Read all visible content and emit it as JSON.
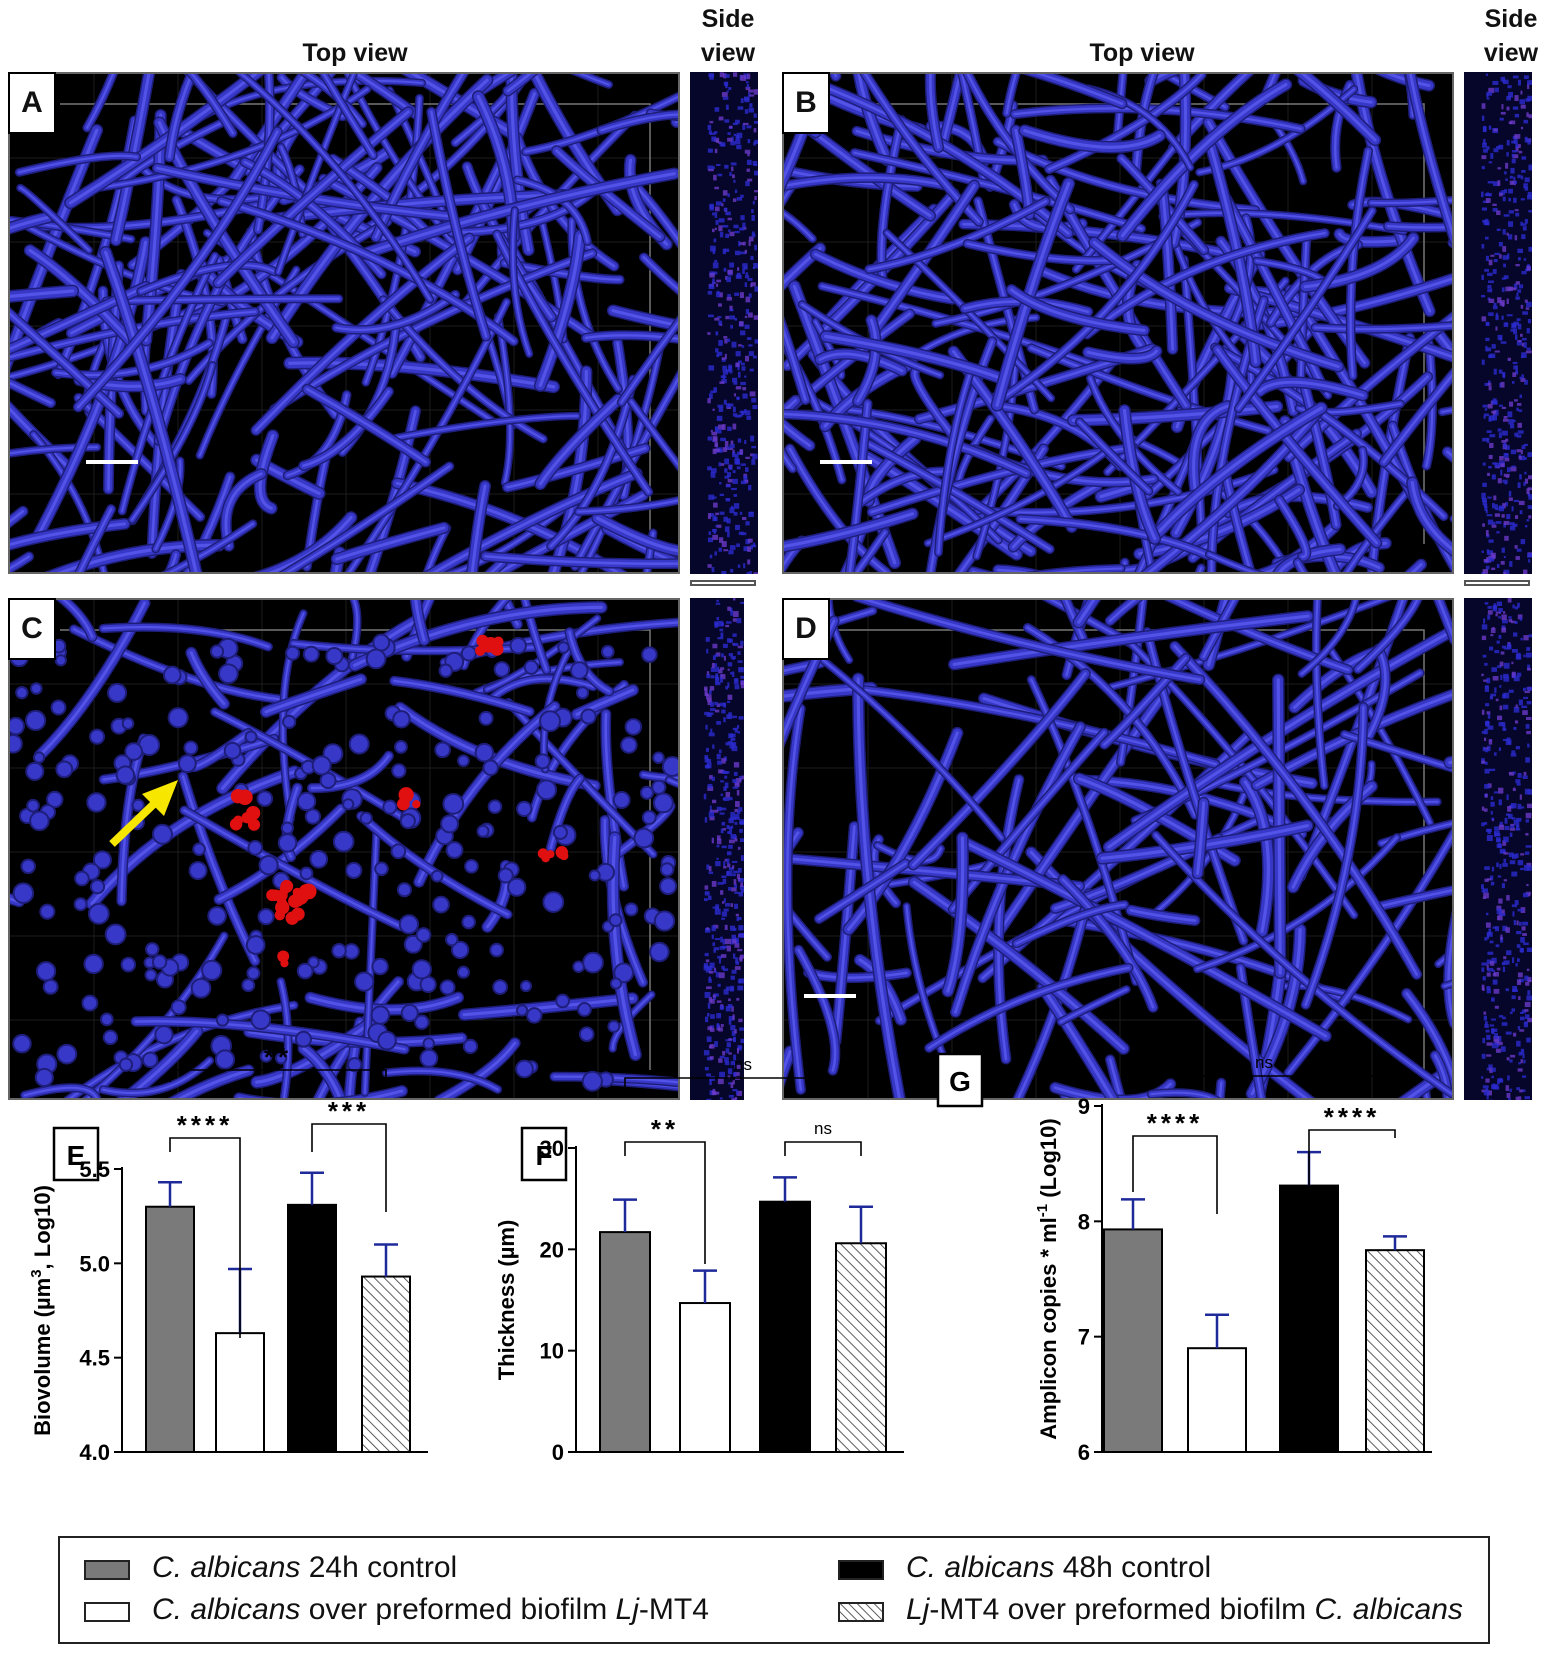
{
  "panels": {
    "A": {
      "letter": "A",
      "top_view_label": "Top view",
      "side_view_label": [
        "Side",
        "view"
      ]
    },
    "B": {
      "letter": "B",
      "top_view_label": "Top view",
      "side_view_label": [
        "Side",
        "view"
      ]
    },
    "C": {
      "letter": "C"
    },
    "D": {
      "letter": "D"
    }
  },
  "colors": {
    "hyphae": "#3838c8",
    "hyphae_light": "#5a5af0",
    "bacteria": "#e01010",
    "arrow": "#f7e600",
    "bar_24h": "#7a7a7a",
    "bar_over_lj": "#ffffff",
    "bar_48h": "#000000",
    "bar_lj_over": "hatch",
    "error_bar": "#1f2a9a"
  },
  "chart_data": [
    {
      "panel": "E",
      "type": "bar",
      "categories": [
        "C. albicans 24h control",
        "C. albicans over preformed biofilm Lj-MT4",
        "C. albicans 48h control",
        "Lj-MT4 over preformed biofilm C. albicans"
      ],
      "values": [
        5.3,
        4.63,
        5.31,
        4.93
      ],
      "errors": [
        0.13,
        0.34,
        0.17,
        0.17
      ],
      "ylabel_parts": [
        "Biovolume (µm",
        "3",
        ", Log10)"
      ],
      "ylim": [
        4.0,
        5.5
      ],
      "yticks": [
        "4.0",
        "4.5",
        "5.0",
        "5.5"
      ],
      "ytick_values": [
        4.0,
        4.5,
        5.0,
        5.5
      ],
      "significance": [
        {
          "from": 0,
          "to": 1,
          "label": "****"
        },
        {
          "from": 2,
          "to": 3,
          "label": "***"
        },
        {
          "from": 0,
          "to": 3,
          "label": "**"
        }
      ]
    },
    {
      "panel": "F",
      "type": "bar",
      "categories": [
        "C. albicans 24h control",
        "C. albicans over preformed biofilm Lj-MT4",
        "C. albicans 48h control",
        "Lj-MT4 over preformed biofilm C. albicans"
      ],
      "values": [
        21.7,
        14.7,
        24.7,
        20.6
      ],
      "errors": [
        3.2,
        3.2,
        2.4,
        3.6
      ],
      "ylabel": "Thickness (µm)",
      "ylim": [
        0,
        30
      ],
      "yticks": [
        "0",
        "10",
        "20",
        "30"
      ],
      "ytick_values": [
        0,
        10,
        20,
        30
      ],
      "significance": [
        {
          "from": 0,
          "to": 1,
          "label": "**"
        },
        {
          "from": 2,
          "to": 3,
          "label": "ns"
        },
        {
          "from": 0,
          "to": 3,
          "label": "ns"
        }
      ]
    },
    {
      "panel": "G",
      "type": "bar",
      "categories": [
        "C. albicans 24h control",
        "C. albicans over preformed biofilm Lj-MT4",
        "C. albicans 48h control",
        "Lj-MT4 over preformed biofilm C. albicans"
      ],
      "values": [
        7.93,
        6.9,
        8.31,
        7.75
      ],
      "errors": [
        0.26,
        0.29,
        0.29,
        0.12
      ],
      "ylabel_parts": [
        "Amplicon copies * ml",
        "-1",
        " (Log10)"
      ],
      "ylim": [
        6,
        9
      ],
      "yticks": [
        "6",
        "7",
        "8",
        "9"
      ],
      "ytick_values": [
        6,
        7,
        8,
        9
      ],
      "significance": [
        {
          "from": 0,
          "to": 1,
          "label": "****"
        },
        {
          "from": 2,
          "to": 3,
          "label": "****"
        },
        {
          "from": 0,
          "to": 3,
          "label": "ns"
        }
      ]
    }
  ],
  "legend": {
    "items": [
      {
        "italic": "C. albicans",
        "rest": " 24h control"
      },
      {
        "italic": "C. albicans",
        "rest": " 48h control"
      },
      {
        "italic": "C. albicans",
        "rest": " over preformed biofilm ",
        "italic2": "Lj",
        "rest2": "-MT4"
      },
      {
        "italic": "Lj",
        "rest": "-MT4 over preformed biofilm ",
        "italic2": "C. albicans",
        "rest2": ""
      }
    ]
  }
}
